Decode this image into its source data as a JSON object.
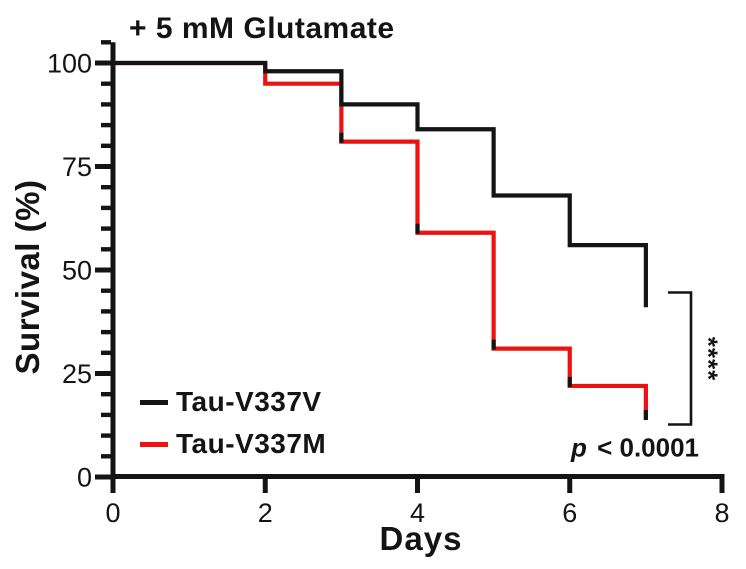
{
  "title": "+ 5 mM Glutamate",
  "axes": {
    "x_label": "Days",
    "y_label": "Survival (%)"
  },
  "annotation": {
    "stars": "****",
    "p_symbol": "p",
    "p_rest": " < 0.0001"
  },
  "colors": {
    "axis": "#141414",
    "text": "#141414",
    "series_black": "#141414",
    "series_red": "#ee1111",
    "background": "#ffffff"
  },
  "chart_data": {
    "type": "line",
    "subtype": "kaplan-meier-survival-step",
    "title": "+ 5 mM Glutamate",
    "xlabel": "Days",
    "ylabel": "Survival (%)",
    "xlim": [
      0,
      8
    ],
    "ylim": [
      0,
      100
    ],
    "x_ticks": [
      0,
      2,
      4,
      6,
      8
    ],
    "y_ticks": [
      0,
      25,
      50,
      75,
      100
    ],
    "y_minor_step": 5,
    "grid": false,
    "legend_position": "lower-left-inside",
    "series": [
      {
        "name": "Tau-V337V",
        "color": "#141414",
        "x": [
          0,
          2,
          3,
          4,
          5,
          6,
          7
        ],
        "survival_pct": [
          100,
          98,
          90,
          84,
          68,
          56,
          41
        ]
      },
      {
        "name": "Tau-V337M",
        "color": "#ee1111",
        "x": [
          0,
          2,
          3,
          4,
          5,
          6,
          7
        ],
        "survival_pct": [
          100,
          95,
          81,
          59,
          31,
          22,
          14
        ],
        "drop_end_tick_days": [
          3,
          4,
          5,
          6,
          7
        ],
        "drop_end_tick_color": "#141414"
      }
    ],
    "annotations": {
      "significance": "****",
      "p_value": "p < 0.0001"
    }
  }
}
